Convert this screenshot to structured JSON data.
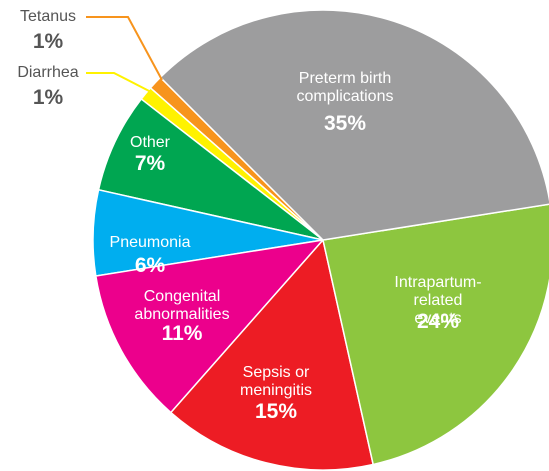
{
  "chart_data": {
    "type": "pie",
    "categories": [
      "Preterm birth\ncomplications",
      "Intrapartum-related\nevents",
      "Sepsis or\nmeningitis",
      "Congenital\nabnormalities",
      "Pneumonia",
      "Other",
      "Diarrhea",
      "Tetanus"
    ],
    "values": [
      35,
      24,
      15,
      11,
      6,
      7,
      1,
      1
    ],
    "value_labels": [
      "35%",
      "24%",
      "15%",
      "11%",
      "6%",
      "7%",
      "1%",
      "1%"
    ],
    "colors": [
      "#9d9d9e",
      "#8dc63f",
      "#ed1c24",
      "#ec008c",
      "#00aeef",
      "#00a651",
      "#fff200",
      "#f7941d"
    ]
  }
}
